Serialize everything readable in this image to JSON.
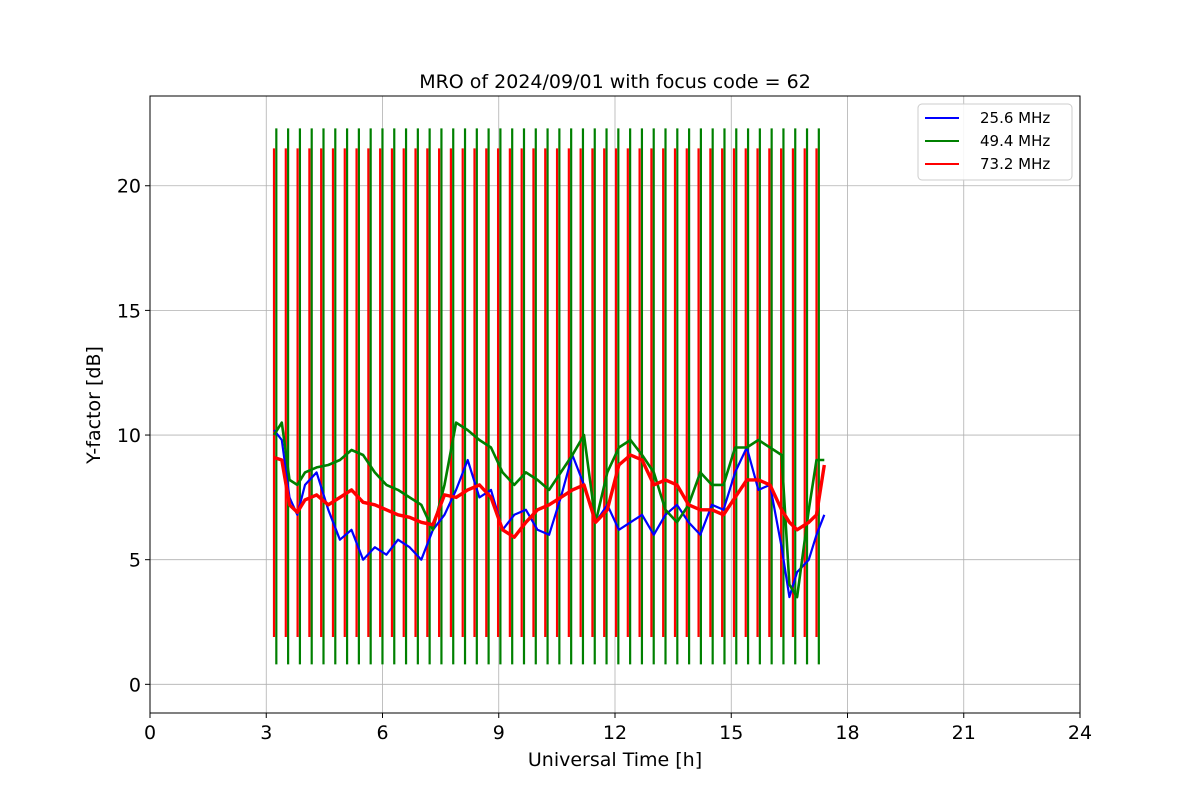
{
  "chart_data": {
    "type": "line",
    "title": "MRO of 2024/09/01 with focus code = 62",
    "xlabel": "Universal Time [h]",
    "ylabel": "Y-factor [dB]",
    "xlim": [
      0,
      24
    ],
    "ylim": [
      -1.15,
      23.6
    ],
    "xticks": [
      0,
      3,
      6,
      9,
      12,
      15,
      18,
      21,
      24
    ],
    "yticks": [
      0,
      5,
      10,
      15,
      20
    ],
    "grid": true,
    "legend_position": "top-right",
    "calibration_pulses": {
      "start_hour": 3.2,
      "end_hour": 17.2,
      "count": 47,
      "green_high": 22.3,
      "red_high": 21.5,
      "green_low": 0.8,
      "red_low": 1.9
    },
    "series": [
      {
        "name": "25.6 MHz",
        "color": "#0000ff",
        "x": [
          3.2,
          3.4,
          3.6,
          3.8,
          4.0,
          4.3,
          4.6,
          4.9,
          5.2,
          5.5,
          5.8,
          6.1,
          6.4,
          6.7,
          7.0,
          7.3,
          7.6,
          7.9,
          8.2,
          8.5,
          8.8,
          9.1,
          9.4,
          9.7,
          10.0,
          10.3,
          10.6,
          10.9,
          11.2,
          11.5,
          11.8,
          12.1,
          12.4,
          12.7,
          13.0,
          13.3,
          13.6,
          13.9,
          14.2,
          14.5,
          14.8,
          15.1,
          15.4,
          15.7,
          16.0,
          16.3,
          16.5,
          16.7,
          17.0,
          17.2,
          17.4
        ],
        "values": [
          10.2,
          9.8,
          7.5,
          6.8,
          8.0,
          8.5,
          7.0,
          5.8,
          6.2,
          5.0,
          5.5,
          5.2,
          5.8,
          5.5,
          5.0,
          6.2,
          6.8,
          7.8,
          9.0,
          7.5,
          7.8,
          6.2,
          6.8,
          7.0,
          6.2,
          6.0,
          7.5,
          9.2,
          8.0,
          6.5,
          7.2,
          6.2,
          6.5,
          6.8,
          6.0,
          6.8,
          7.2,
          6.5,
          6.0,
          7.2,
          7.0,
          8.5,
          9.5,
          7.8,
          8.0,
          5.5,
          3.5,
          4.5,
          5.0,
          6.0,
          6.8
        ]
      },
      {
        "name": "49.4 MHz",
        "color": "#008000",
        "x": [
          3.2,
          3.4,
          3.6,
          3.8,
          4.0,
          4.3,
          4.6,
          4.9,
          5.2,
          5.5,
          5.8,
          6.1,
          6.4,
          6.7,
          7.0,
          7.3,
          7.6,
          7.9,
          8.2,
          8.5,
          8.8,
          9.1,
          9.4,
          9.7,
          10.0,
          10.3,
          10.6,
          10.9,
          11.2,
          11.5,
          11.8,
          12.1,
          12.4,
          12.7,
          13.0,
          13.3,
          13.6,
          13.9,
          14.2,
          14.5,
          14.8,
          15.1,
          15.4,
          15.7,
          16.0,
          16.3,
          16.5,
          16.7,
          17.0,
          17.2,
          17.4
        ],
        "values": [
          10.0,
          10.5,
          8.2,
          8.0,
          8.5,
          8.7,
          8.8,
          9.0,
          9.4,
          9.2,
          8.5,
          8.0,
          7.8,
          7.5,
          7.2,
          6.2,
          8.0,
          10.5,
          10.2,
          9.8,
          9.5,
          8.5,
          8.0,
          8.5,
          8.2,
          7.8,
          8.5,
          9.2,
          10.0,
          6.5,
          8.5,
          9.5,
          9.8,
          9.2,
          8.5,
          7.0,
          6.5,
          7.2,
          8.5,
          8.0,
          8.0,
          9.5,
          9.5,
          9.8,
          9.5,
          9.2,
          4.0,
          3.5,
          7.0,
          9.0,
          9.0
        ]
      },
      {
        "name": "73.2 MHz",
        "color": "#ff0000",
        "x": [
          3.2,
          3.4,
          3.6,
          3.8,
          4.0,
          4.3,
          4.6,
          4.9,
          5.2,
          5.5,
          5.8,
          6.1,
          6.4,
          6.7,
          7.0,
          7.3,
          7.6,
          7.9,
          8.2,
          8.5,
          8.8,
          9.1,
          9.4,
          9.7,
          10.0,
          10.3,
          10.6,
          10.9,
          11.2,
          11.5,
          11.8,
          12.1,
          12.4,
          12.7,
          13.0,
          13.3,
          13.6,
          13.9,
          14.2,
          14.5,
          14.8,
          15.1,
          15.4,
          15.7,
          16.0,
          16.3,
          16.5,
          16.7,
          17.0,
          17.2,
          17.4
        ],
        "values": [
          9.1,
          9.0,
          7.2,
          6.9,
          7.4,
          7.6,
          7.2,
          7.5,
          7.8,
          7.3,
          7.2,
          7.0,
          6.8,
          6.7,
          6.5,
          6.4,
          7.6,
          7.5,
          7.8,
          8.0,
          7.5,
          6.2,
          5.9,
          6.5,
          7.0,
          7.2,
          7.5,
          7.8,
          8.0,
          6.5,
          7.0,
          8.8,
          9.2,
          9.0,
          8.0,
          8.2,
          8.0,
          7.2,
          7.0,
          7.0,
          6.8,
          7.5,
          8.2,
          8.2,
          8.0,
          7.0,
          6.5,
          6.2,
          6.5,
          6.8,
          8.8
        ]
      }
    ]
  }
}
